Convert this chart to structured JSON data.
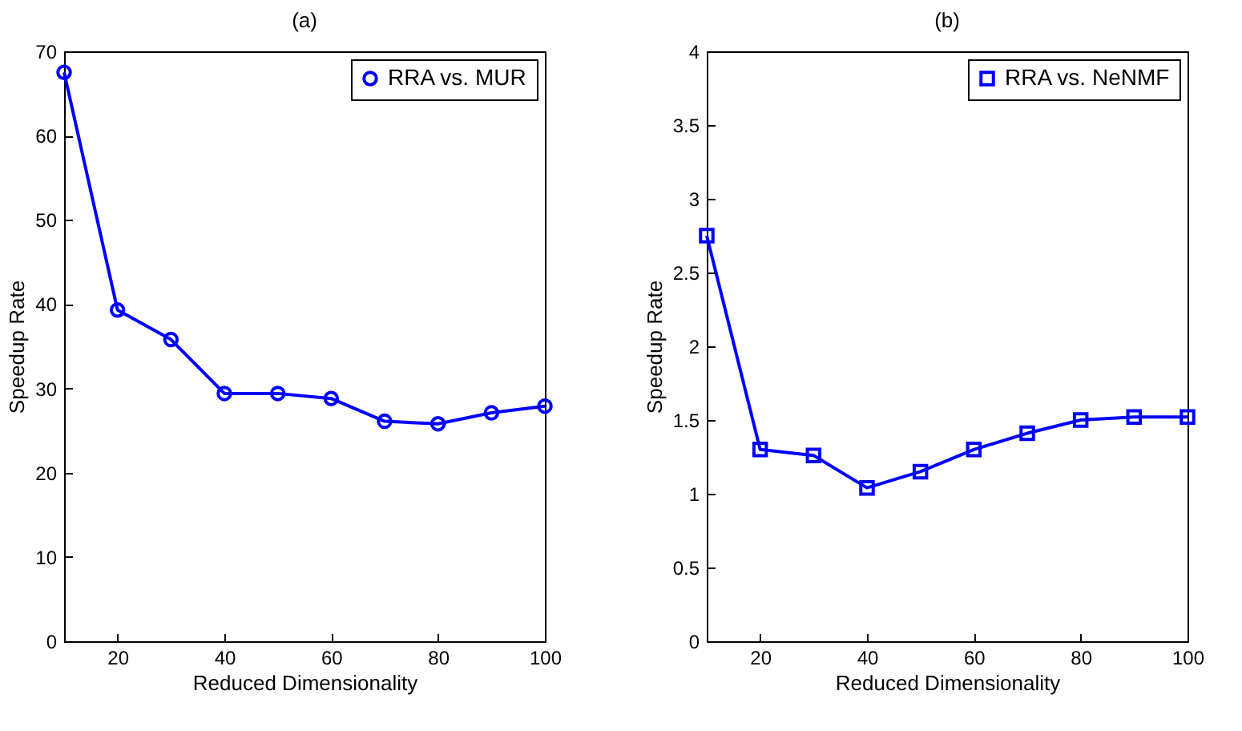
{
  "chart_data": [
    {
      "type": "line",
      "title": "(a)",
      "xlabel": "Reduced Dimensionality",
      "ylabel": "Speedup Rate",
      "x": [
        10,
        20,
        30,
        40,
        50,
        60,
        70,
        80,
        90,
        100
      ],
      "series": [
        {
          "name": "RRA vs. MUR",
          "color": "#0000ff",
          "values": [
            67.5,
            39.3,
            35.8,
            29.4,
            29.4,
            28.8,
            26.1,
            25.8,
            27.1,
            27.9
          ]
        }
      ],
      "xlim": [
        10,
        100
      ],
      "xticks": [
        20,
        40,
        60,
        80,
        100
      ],
      "ylim": [
        0,
        70
      ],
      "yticks": [
        0,
        10,
        20,
        30,
        40,
        50,
        60,
        70
      ],
      "legend": "top right",
      "marker": "circle",
      "grid": false
    },
    {
      "type": "line",
      "title": "(b)",
      "xlabel": "Reduced Dimensionality",
      "ylabel": "Speedup Rate",
      "x": [
        10,
        20,
        30,
        40,
        50,
        60,
        70,
        80,
        90,
        100
      ],
      "series": [
        {
          "name": "RRA vs. NeNMF",
          "color": "#0000ff",
          "values": [
            2.75,
            1.3,
            1.26,
            1.04,
            1.15,
            1.3,
            1.41,
            1.5,
            1.52,
            1.52
          ]
        }
      ],
      "xlim": [
        10,
        100
      ],
      "xticks": [
        20,
        40,
        60,
        80,
        100
      ],
      "ylim": [
        0,
        4
      ],
      "yticks": [
        0,
        0.5,
        1,
        1.5,
        2,
        2.5,
        3,
        3.5,
        4
      ],
      "legend": "top right",
      "marker": "square",
      "grid": false
    }
  ]
}
